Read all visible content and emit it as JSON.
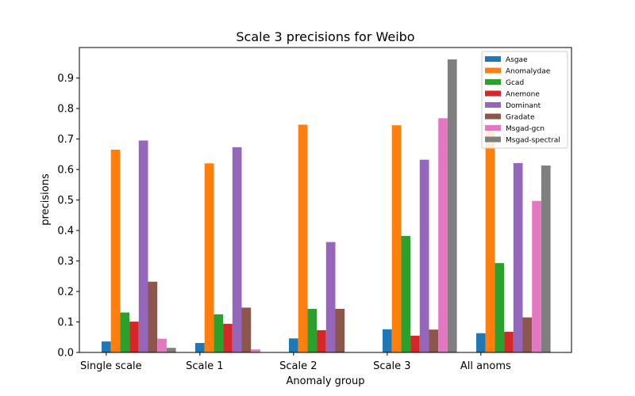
{
  "chart_data": {
    "type": "bar",
    "title": "Scale 3 precisions for Weibo",
    "xlabel": "Anomaly group",
    "ylabel": "precisions",
    "ylim": [
      0,
      1.0
    ],
    "yticks": [
      "0.0",
      "0.1",
      "0.2",
      "0.3",
      "0.4",
      "0.5",
      "0.6",
      "0.7",
      "0.8",
      "0.9"
    ],
    "categories": [
      "Single scale",
      "Scale 1",
      "Scale 2",
      "Scale 3",
      "All anoms"
    ],
    "legend_position": "top-right",
    "grid": false,
    "series": [
      {
        "name": "Asgae",
        "color": "#1f77b4",
        "values": [
          0.036,
          0.031,
          0.046,
          0.076,
          0.063
        ]
      },
      {
        "name": "Anomalydae",
        "color": "#ff7f0e",
        "values": [
          0.665,
          0.62,
          0.747,
          0.745,
          0.725
        ]
      },
      {
        "name": "Gcad",
        "color": "#2ca02c",
        "values": [
          0.131,
          0.125,
          0.143,
          0.382,
          0.293
        ]
      },
      {
        "name": "Anemone",
        "color": "#d62728",
        "values": [
          0.101,
          0.094,
          0.073,
          0.055,
          0.068
        ]
      },
      {
        "name": "Dominant",
        "color": "#9467bd",
        "values": [
          0.695,
          0.673,
          0.362,
          0.632,
          0.621
        ]
      },
      {
        "name": "Gradate",
        "color": "#8c564b",
        "values": [
          0.232,
          0.147,
          0.143,
          0.075,
          0.115
        ]
      },
      {
        "name": "Msgad-gcn",
        "color": "#e377c2",
        "values": [
          0.045,
          0.01,
          0.0,
          0.768,
          0.497
        ]
      },
      {
        "name": "Msgad-spectral",
        "color": "#7f7f7f",
        "values": [
          0.015,
          0.0,
          0.0,
          0.961,
          0.613
        ]
      }
    ]
  }
}
